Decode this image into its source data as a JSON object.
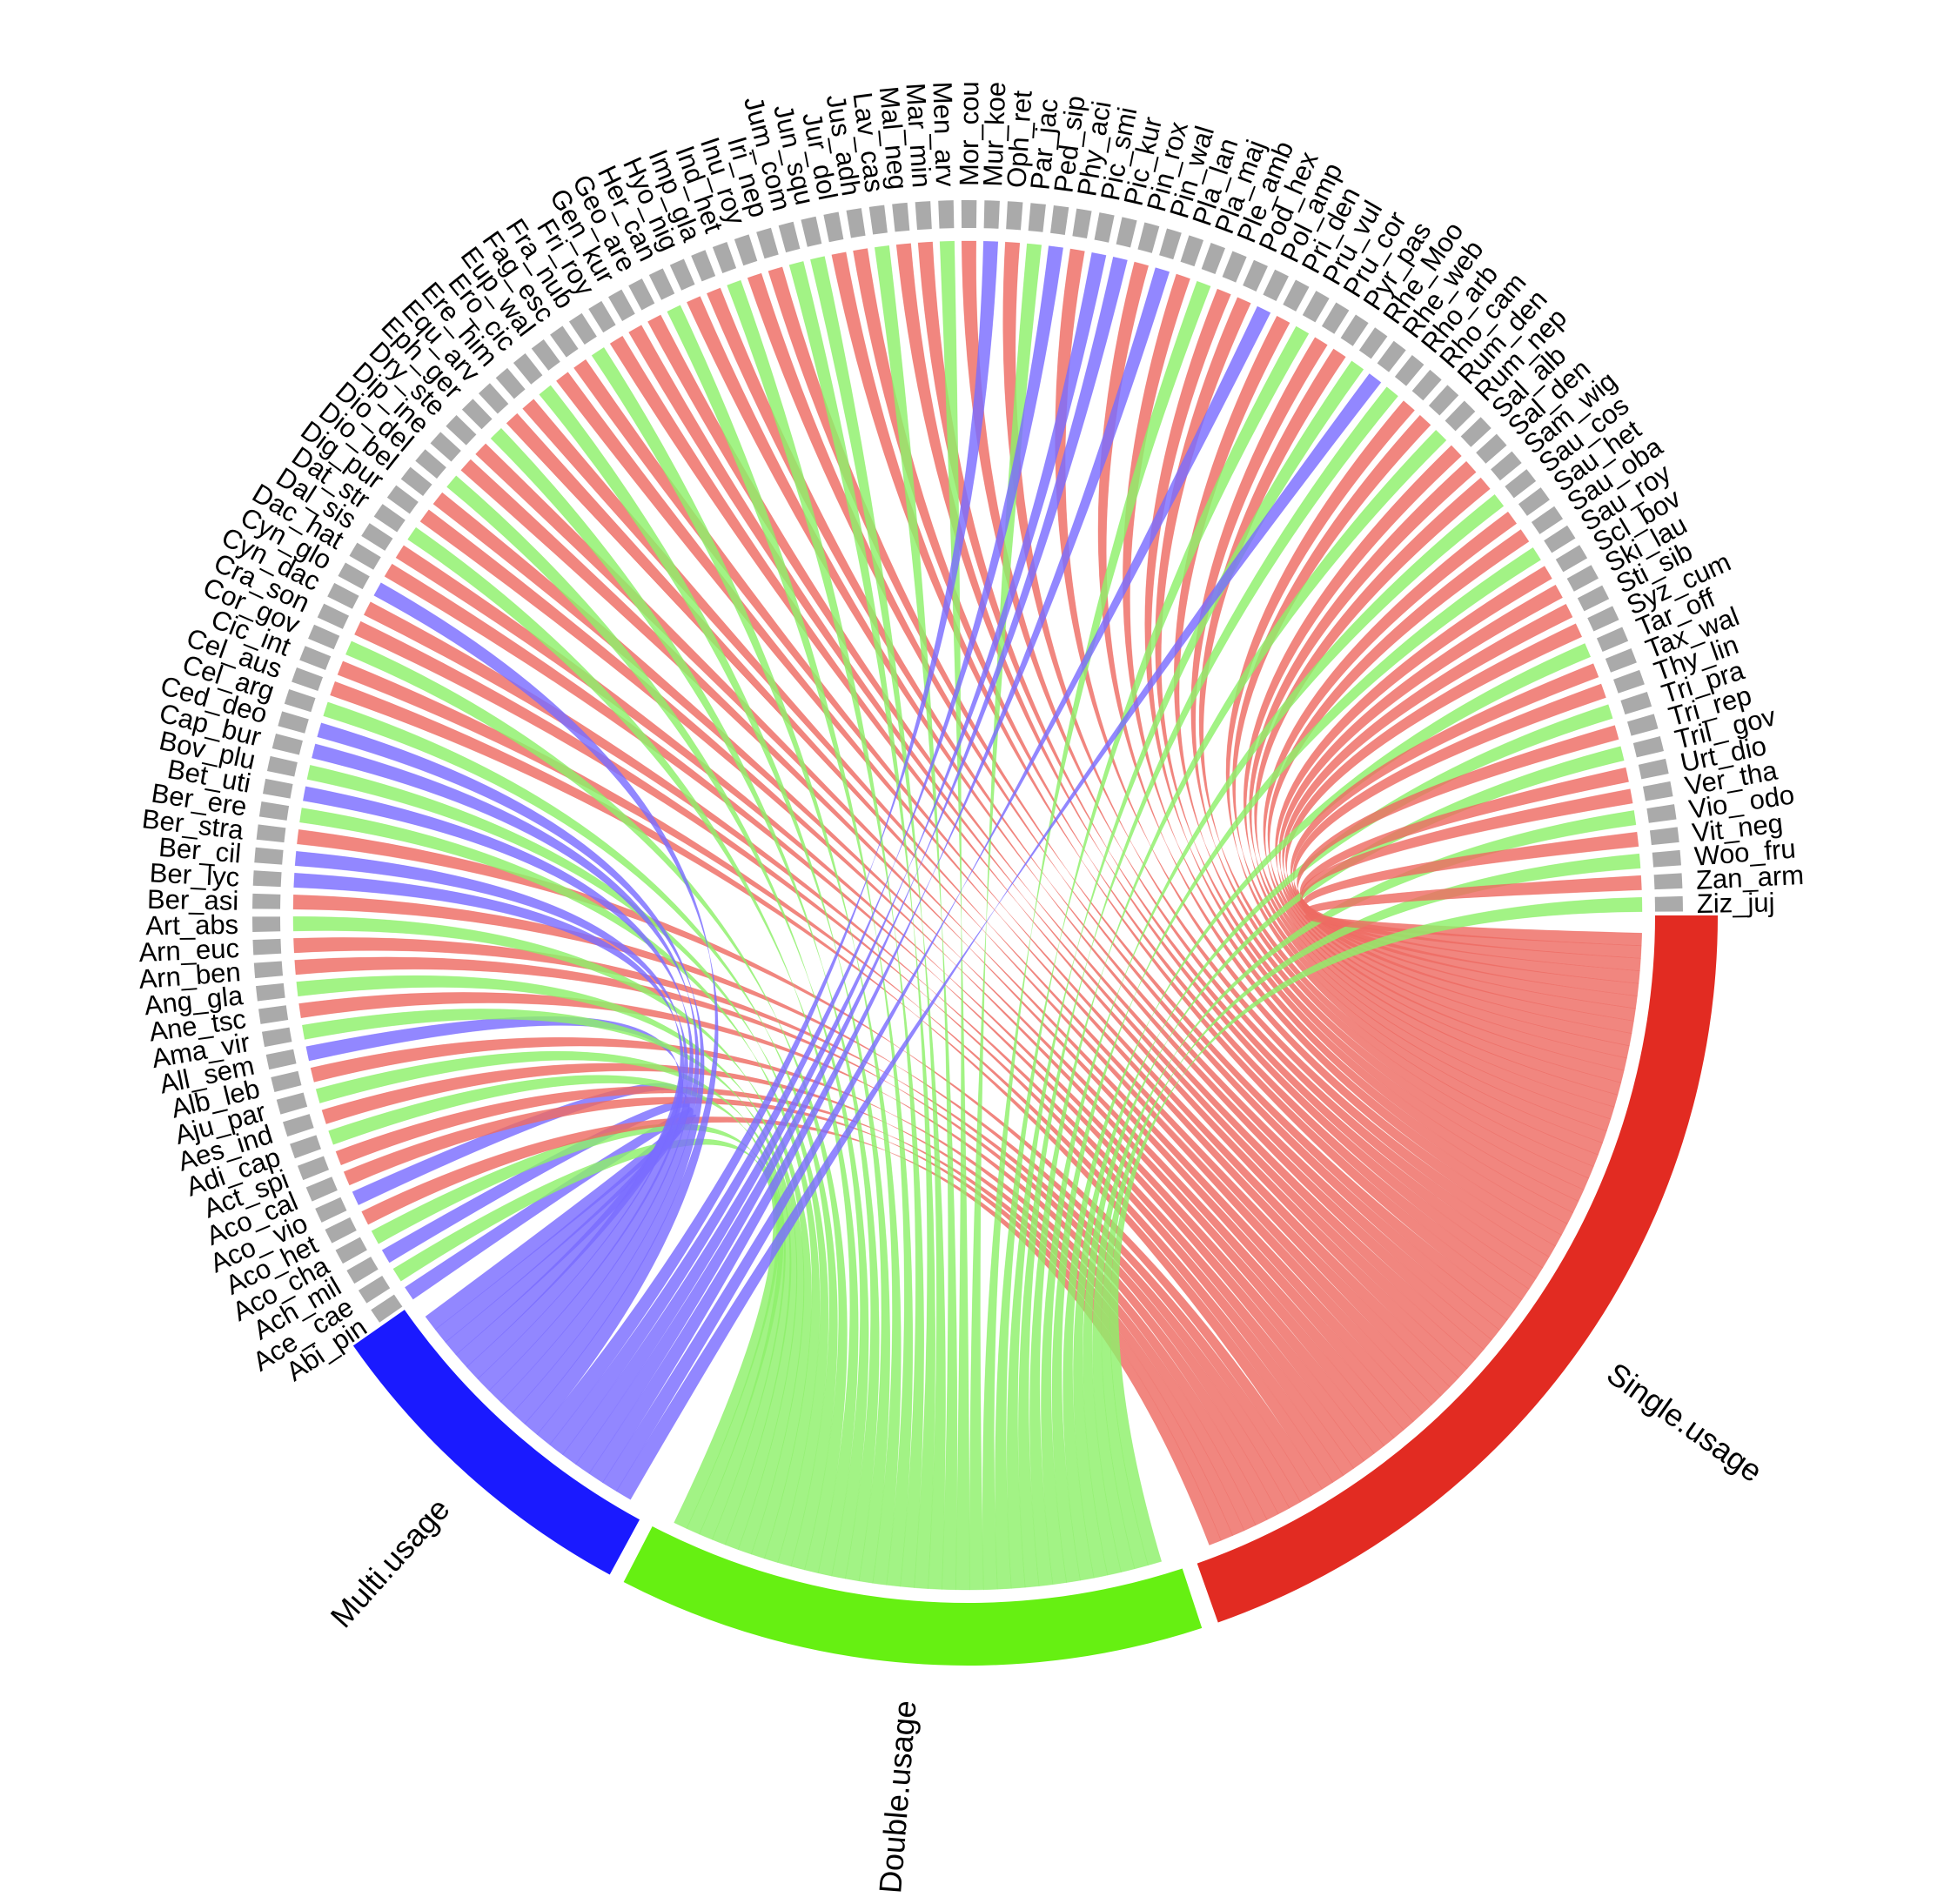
{
  "chart_data": {
    "type": "chord",
    "groups": [
      {
        "name": "Multi.usage",
        "color": "#1a1aff",
        "ribbon_color": "#7a6cff"
      },
      {
        "name": "Double.usage",
        "color": "#66f012",
        "ribbon_color": "#8ef06a"
      },
      {
        "name": "Single.usage",
        "color": "#e22b22",
        "ribbon_color": "#ee6b63"
      }
    ],
    "species_color": "#aaaaaa",
    "species": [
      {
        "name": "Abi_pin",
        "usage": "Multi.usage"
      },
      {
        "name": "Ace_ cae",
        "usage": "Double.usage"
      },
      {
        "name": "Ach_mil",
        "usage": "Multi.usage"
      },
      {
        "name": "Aco_cha",
        "usage": "Double.usage"
      },
      {
        "name": "Aco_het",
        "usage": "Single.usage"
      },
      {
        "name": "Aco_ vio",
        "usage": "Multi.usage"
      },
      {
        "name": "Aco_cal",
        "usage": "Single.usage"
      },
      {
        "name": "Act_spi",
        "usage": "Single.usage"
      },
      {
        "name": "Adi_cap",
        "usage": "Double.usage"
      },
      {
        "name": "Aes_ind",
        "usage": "Single.usage"
      },
      {
        "name": "Aju_par",
        "usage": "Double.usage"
      },
      {
        "name": "Alb_leb",
        "usage": "Single.usage"
      },
      {
        "name": "All_sem",
        "usage": "Multi.usage"
      },
      {
        "name": "Ama_vir",
        "usage": "Double.usage"
      },
      {
        "name": "Ane_tsc",
        "usage": "Single.usage"
      },
      {
        "name": "Ang_gla",
        "usage": "Double.usage"
      },
      {
        "name": "Arn_ben",
        "usage": "Single.usage"
      },
      {
        "name": "Arn_euc",
        "usage": "Single.usage"
      },
      {
        "name": "Art_abs",
        "usage": "Double.usage"
      },
      {
        "name": "Ber_asi",
        "usage": "Single.usage"
      },
      {
        "name": "Ber_lyc",
        "usage": "Multi.usage"
      },
      {
        "name": "Ber_cil",
        "usage": "Multi.usage"
      },
      {
        "name": "Ber_stra",
        "usage": "Single.usage"
      },
      {
        "name": "Ber_ere",
        "usage": "Double.usage"
      },
      {
        "name": "Bet_uti",
        "usage": "Multi.usage"
      },
      {
        "name": "Bov_plu",
        "usage": "Double.usage"
      },
      {
        "name": "Cap_bur",
        "usage": "Multi.usage"
      },
      {
        "name": "Ced_deo",
        "usage": "Multi.usage"
      },
      {
        "name": "Cel_arg",
        "usage": "Double.usage"
      },
      {
        "name": "Cel_aus",
        "usage": "Single.usage"
      },
      {
        "name": "Cic_int",
        "usage": "Single.usage"
      },
      {
        "name": "Cor_gov",
        "usage": "Double.usage"
      },
      {
        "name": "Cra_son",
        "usage": "Single.usage"
      },
      {
        "name": "Cyn_dac",
        "usage": "Single.usage"
      },
      {
        "name": "Cyn_glo",
        "usage": "Multi.usage"
      },
      {
        "name": "Dac_hat",
        "usage": "Single.usage"
      },
      {
        "name": "Dal_sis",
        "usage": "Single.usage"
      },
      {
        "name": "Dat_str",
        "usage": "Double.usage"
      },
      {
        "name": "Dig_pur",
        "usage": "Single.usage"
      },
      {
        "name": "Dio_bel",
        "usage": "Single.usage"
      },
      {
        "name": "Dio_del",
        "usage": "Double.usage"
      },
      {
        "name": "Dip_ine",
        "usage": "Single.usage"
      },
      {
        "name": "Dry_ste",
        "usage": "Single.usage"
      },
      {
        "name": "Eph_ger",
        "usage": "Double.usage"
      },
      {
        "name": "Equ_arv",
        "usage": "Single.usage"
      },
      {
        "name": "Ere_him",
        "usage": "Single.usage"
      },
      {
        "name": "Ero_cic",
        "usage": "Double.usage"
      },
      {
        "name": "Eup_wal",
        "usage": "Single.usage"
      },
      {
        "name": "Fag_esc",
        "usage": "Single.usage"
      },
      {
        "name": "Fra_nub",
        "usage": "Double.usage"
      },
      {
        "name": "Fri_roy",
        "usage": "Single.usage"
      },
      {
        "name": "Gen_kur",
        "usage": "Single.usage"
      },
      {
        "name": "Geo_are",
        "usage": "Single.usage"
      },
      {
        "name": "Her_can",
        "usage": "Double.usage"
      },
      {
        "name": "Hyo_nig",
        "usage": "Single.usage"
      },
      {
        "name": "Imp_gla",
        "usage": "Single.usage"
      },
      {
        "name": "Ind_het",
        "usage": "Double.usage"
      },
      {
        "name": "Inu_roy",
        "usage": "Single.usage"
      },
      {
        "name": "Iri_nep",
        "usage": "Single.usage"
      },
      {
        "name": "Jum_com",
        "usage": "Double.usage"
      },
      {
        "name": "Jun_squ",
        "usage": "Double.usage"
      },
      {
        "name": "Jur_dol",
        "usage": "Single.usage"
      },
      {
        "name": "Jus_adh",
        "usage": "Single.usage"
      },
      {
        "name": "Lav_cas",
        "usage": "Double.usage"
      },
      {
        "name": "Mal_neg",
        "usage": "Single.usage"
      },
      {
        "name": "Mar_min",
        "usage": "Single.usage"
      },
      {
        "name": "Men_arv",
        "usage": "Double.usage"
      },
      {
        "name": "Mor_cou",
        "usage": "Single.usage"
      },
      {
        "name": "Mur_koe",
        "usage": "Multi.usage"
      },
      {
        "name": "Oph_ret",
        "usage": "Single.usage"
      },
      {
        "name": "Par_jac",
        "usage": "Double.usage"
      },
      {
        "name": "Ped_sip",
        "usage": "Multi.usage"
      },
      {
        "name": "Phy_aci",
        "usage": "Single.usage"
      },
      {
        "name": "Pic_smi",
        "usage": "Multi.usage"
      },
      {
        "name": "Pic_kur",
        "usage": "Multi.usage"
      },
      {
        "name": "Pin_rox",
        "usage": "Single.usage"
      },
      {
        "name": "Pin_wal",
        "usage": "Multi.usage"
      },
      {
        "name": "Pla_lan",
        "usage": "Single.usage"
      },
      {
        "name": "Pla_maj",
        "usage": "Double.usage"
      },
      {
        "name": "Ple_amb",
        "usage": "Single.usage"
      },
      {
        "name": "Pod_hex",
        "usage": "Single.usage"
      },
      {
        "name": "Pol_amp",
        "usage": "Multi.usage"
      },
      {
        "name": "Pri_den",
        "usage": "Single.usage"
      },
      {
        "name": "Pru_vul",
        "usage": "Double.usage"
      },
      {
        "name": "Pru_cor",
        "usage": "Single.usage"
      },
      {
        "name": "Pyr_pas",
        "usage": "Single.usage"
      },
      {
        "name": "Rhe_Moo",
        "usage": "Double.usage"
      },
      {
        "name": "Rhe_web",
        "usage": "Multi.usage"
      },
      {
        "name": "Rho_arb",
        "usage": "Double.usage"
      },
      {
        "name": "Rho_cam",
        "usage": "Single.usage"
      },
      {
        "name": "Rum_den",
        "usage": "Single.usage"
      },
      {
        "name": "Rum_nep",
        "usage": "Double.usage"
      },
      {
        "name": "Sal_alb",
        "usage": "Single.usage"
      },
      {
        "name": "Sal_den",
        "usage": "Single.usage"
      },
      {
        "name": "Sam_wig",
        "usage": "Single.usage"
      },
      {
        "name": "Sau_cos",
        "usage": "Double.usage"
      },
      {
        "name": "Sau_het",
        "usage": "Single.usage"
      },
      {
        "name": "Sau_oba",
        "usage": "Single.usage"
      },
      {
        "name": "Sau_roy",
        "usage": "Double.usage"
      },
      {
        "name": "Scl_bov",
        "usage": "Single.usage"
      },
      {
        "name": "Ski_lau",
        "usage": "Single.usage"
      },
      {
        "name": "Sti_sib",
        "usage": "Single.usage"
      },
      {
        "name": "Syz_cum",
        "usage": "Single.usage"
      },
      {
        "name": "Tar_off",
        "usage": "Double.usage"
      },
      {
        "name": "Tax_wal",
        "usage": "Single.usage"
      },
      {
        "name": "Thy_lin",
        "usage": "Single.usage"
      },
      {
        "name": "Tri_pra",
        "usage": "Double.usage"
      },
      {
        "name": "Tri_rep",
        "usage": "Single.usage"
      },
      {
        "name": "Tril_ gov",
        "usage": "Double.usage"
      },
      {
        "name": "Urt_dio",
        "usage": "Single.usage"
      },
      {
        "name": "Ver_tha",
        "usage": "Single.usage"
      },
      {
        "name": "Vio_ odo",
        "usage": "Double.usage"
      },
      {
        "name": "Vit_neg",
        "usage": "Single.usage"
      },
      {
        "name": "Woo_fru",
        "usage": "Double.usage"
      },
      {
        "name": "Zan_arm",
        "usage": "Single.usage"
      },
      {
        "name": "Ziz_juj",
        "usage": "Double.usage"
      }
    ]
  }
}
